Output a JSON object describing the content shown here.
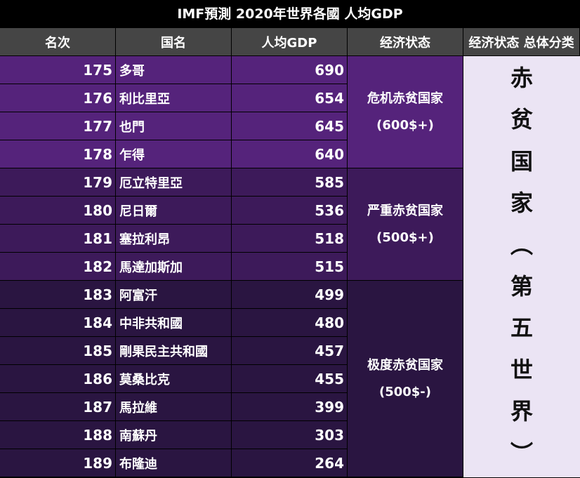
{
  "title": "IMF預測 2020年世界各國 人均GDP",
  "headers": [
    "名次",
    "国名",
    "人均GDP",
    "经济状态",
    "经济状态 总体分类"
  ],
  "rows": [
    {
      "rank": "175",
      "name": "多哥",
      "gdp": "690"
    },
    {
      "rank": "176",
      "name": "利比里亞",
      "gdp": "654"
    },
    {
      "rank": "177",
      "name": "也門",
      "gdp": "645"
    },
    {
      "rank": "178",
      "name": "乍得",
      "gdp": "640"
    },
    {
      "rank": "179",
      "name": "厄立特里亞",
      "gdp": "585"
    },
    {
      "rank": "180",
      "name": "尼日爾",
      "gdp": "536"
    },
    {
      "rank": "181",
      "name": "塞拉利昂",
      "gdp": "518"
    },
    {
      "rank": "182",
      "name": "馬達加斯加",
      "gdp": "515"
    },
    {
      "rank": "183",
      "name": "阿富汗",
      "gdp": "499"
    },
    {
      "rank": "184",
      "name": "中非共和國",
      "gdp": "480"
    },
    {
      "rank": "185",
      "name": "剛果民主共和國",
      "gdp": "457"
    },
    {
      "rank": "186",
      "name": "莫桑比克",
      "gdp": "455"
    },
    {
      "rank": "187",
      "name": "馬拉維",
      "gdp": "399"
    },
    {
      "rank": "188",
      "name": "南蘇丹",
      "gdp": "303"
    },
    {
      "rank": "189",
      "name": "布隆迪",
      "gdp": "264"
    }
  ],
  "status_groups": [
    {
      "label": "危机赤贫国家",
      "range": "(600$+)",
      "color": "#55237b"
    },
    {
      "label": "严重赤贫国家",
      "range": "(500$+)",
      "color": "#3d1a5a"
    },
    {
      "label": "极度赤贫国家",
      "range": "(500$-)",
      "color": "#2a1541"
    }
  ],
  "overall_chars": [
    "赤",
    "贫",
    "国",
    "家",
    "︵",
    "第",
    "五",
    "世",
    "界",
    "︶"
  ],
  "overall_bg": "#ebe4f4"
}
